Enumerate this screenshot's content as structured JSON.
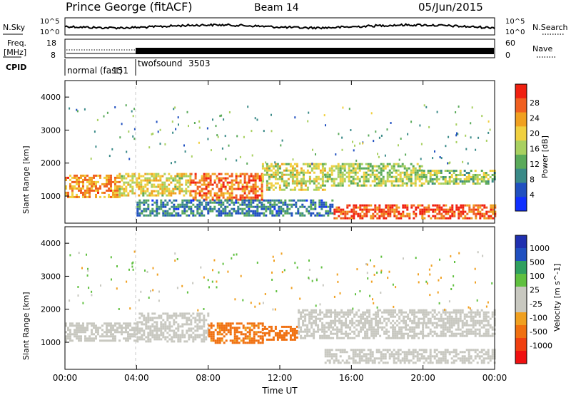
{
  "header": {
    "station": "Prince George (fitACF)",
    "beam": "Beam 14",
    "date": "05/Jun/2015"
  },
  "summary": {
    "nsky_label": "N.Sky",
    "nsky_ticks": [
      "10^5",
      "10^0"
    ],
    "nsearch_label": "N.Search",
    "freq_label_line1": "Freq.",
    "freq_label_line2": "[MHz]",
    "freq_ticks": [
      "18",
      "8"
    ],
    "nave_ticks": [
      "60",
      "0"
    ],
    "nave_label": "Nave",
    "cpid_label": "CPID",
    "cpid_modes": [
      {
        "name": "normal (fast)",
        "id": "151",
        "start_hour": 0
      },
      {
        "name": "twofsound",
        "id": "3503",
        "start_hour": 4
      }
    ]
  },
  "x_axis": {
    "label": "Time UT",
    "ticks": [
      "00:00",
      "04:00",
      "08:00",
      "12:00",
      "16:00",
      "20:00",
      "00:00"
    ],
    "range_hours": [
      0,
      24
    ]
  },
  "chart_data": [
    {
      "type": "heatmap",
      "panel": "power",
      "ylabel": "Slant Range [km]",
      "ylim": [
        180,
        4500
      ],
      "y_ticks": [
        1000,
        2000,
        3000,
        4000
      ],
      "colorbar": {
        "label": "Power [dB]",
        "ticks": [
          "28",
          "24",
          "20",
          "16",
          "12",
          "8",
          "4"
        ],
        "range": [
          0,
          30
        ]
      },
      "bands": [
        {
          "t0": 0,
          "t1": 3,
          "r0": 1000,
          "r1": 1650,
          "value": 22
        },
        {
          "t0": 3,
          "t1": 7,
          "r0": 1050,
          "r1": 1700,
          "value": 18
        },
        {
          "t0": 7,
          "t1": 11,
          "r0": 900,
          "r1": 1700,
          "value": 24
        },
        {
          "t0": 11,
          "t1": 14.5,
          "r0": 1200,
          "r1": 2000,
          "value": 16
        },
        {
          "t0": 14.5,
          "t1": 20,
          "r0": 1300,
          "r1": 2000,
          "value": 15
        },
        {
          "t0": 15,
          "t1": 24,
          "r0": 300,
          "r1": 750,
          "value": 26
        },
        {
          "t0": 20,
          "t1": 24,
          "r0": 1400,
          "r1": 1800,
          "value": 14
        },
        {
          "t0": 4,
          "t1": 15,
          "r0": 400,
          "r1": 900,
          "value": 8
        }
      ]
    },
    {
      "type": "heatmap",
      "panel": "velocity",
      "ylabel": "Slant Range [km]",
      "ylim": [
        180,
        4500
      ],
      "y_ticks": [
        1000,
        2000,
        3000,
        4000
      ],
      "colorbar": {
        "label": "Velocity [m s^-1]",
        "ticks": [
          "1000",
          "500",
          "100",
          "25",
          "-25",
          "-100",
          "-500",
          "-1000"
        ]
      },
      "bands": [
        {
          "t0": 0,
          "t1": 4,
          "r0": 1050,
          "r1": 1600,
          "value": 0
        },
        {
          "t0": 4,
          "t1": 8,
          "r0": 1000,
          "r1": 1900,
          "value": 10
        },
        {
          "t0": 8,
          "t1": 11,
          "r0": 1000,
          "r1": 1600,
          "value": -150
        },
        {
          "t0": 11,
          "t1": 13,
          "r0": 1100,
          "r1": 1500,
          "value": -350
        },
        {
          "t0": 13,
          "t1": 20,
          "r0": 1100,
          "r1": 2000,
          "value": 0
        },
        {
          "t0": 20,
          "t1": 24,
          "r0": 1200,
          "r1": 2000,
          "value": 0
        },
        {
          "t0": 14.5,
          "t1": 24,
          "r0": 350,
          "r1": 800,
          "value": 5
        }
      ]
    }
  ]
}
